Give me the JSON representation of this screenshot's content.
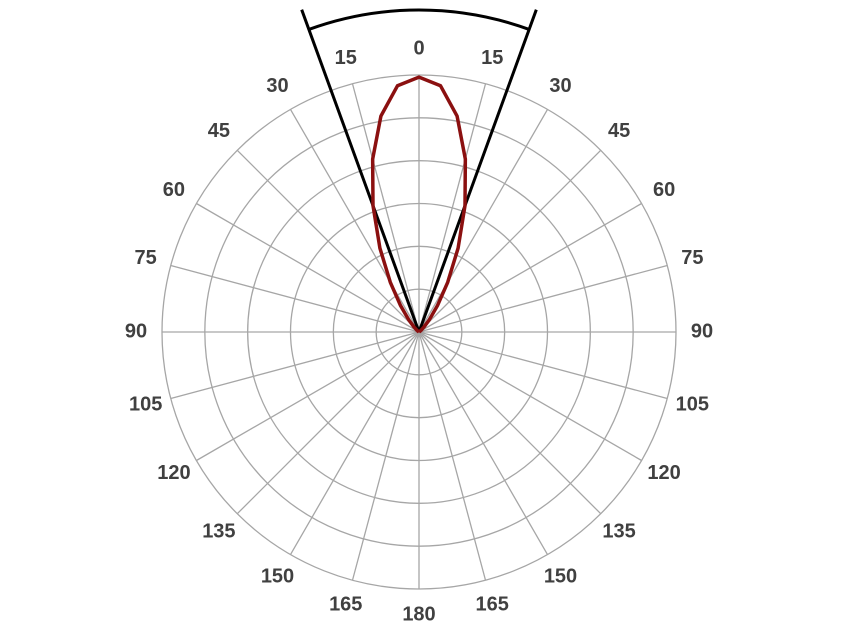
{
  "chart_data": {
    "type": "polar",
    "rlim": [
      0,
      6
    ],
    "rticks": [
      1,
      2,
      3,
      4,
      5,
      6
    ],
    "thetaticks": [
      0,
      15,
      30,
      45,
      60,
      75,
      90,
      105,
      120,
      135,
      150,
      165,
      180,
      {
        "value": -15,
        "label": "15"
      },
      {
        "value": -30,
        "label": "30"
      },
      {
        "value": -45,
        "label": "45"
      },
      {
        "value": -60,
        "label": "60"
      },
      {
        "value": -75,
        "label": "75"
      },
      {
        "value": -90,
        "label": "90"
      },
      {
        "value": -105,
        "label": "105"
      },
      {
        "value": -120,
        "label": "120"
      },
      {
        "value": -135,
        "label": "135"
      },
      {
        "value": -150,
        "label": "150"
      },
      {
        "value": -165,
        "label": "165"
      }
    ],
    "grid": true,
    "beam_edges": [
      -20,
      20
    ],
    "series": [
      {
        "color": "#8b1010",
        "theta": [
          -60,
          -55,
          -50,
          -45,
          -40,
          -35,
          -30,
          -25,
          -20,
          -15,
          -10,
          -5,
          0,
          5,
          10,
          15,
          20,
          25,
          30,
          35,
          40,
          45,
          50,
          55,
          60
        ],
        "values": [
          0,
          0.03,
          0.07,
          0.16,
          0.38,
          0.75,
          1.34,
          2.16,
          3.14,
          4.18,
          5.12,
          5.77,
          5.95,
          5.77,
          5.12,
          4.18,
          3.14,
          2.16,
          1.34,
          0.75,
          0.38,
          0.16,
          0.07,
          0.03,
          0
        ]
      }
    ]
  }
}
